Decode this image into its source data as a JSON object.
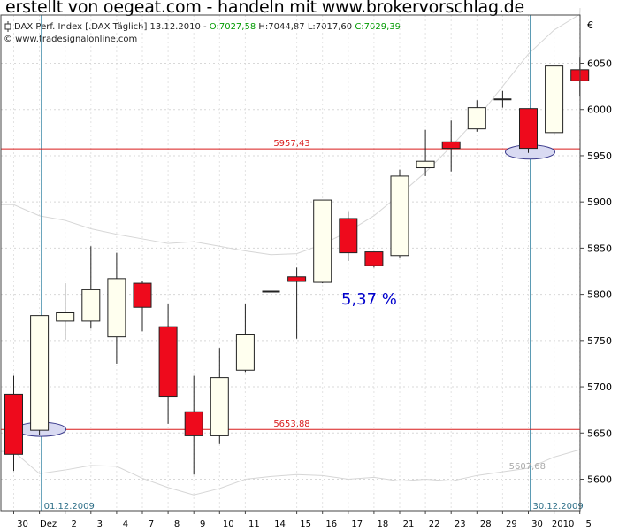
{
  "banner": "erstellt von oegeat.com - handeln mit www.brokervorschlag.de",
  "header": {
    "instrument": "DAX Perf. Index [.DAX Täglich] 13.12.2010 - ",
    "open": "O:7027,58",
    "high": "H:7044,87",
    "low": "L:7017,60",
    "close": "C:7029,39",
    "copyright": "© www.tradesignalonline.com"
  },
  "chart_data": {
    "type": "candlestick",
    "currency_label": "€",
    "ylim": [
      5583,
      6110
    ],
    "y_ticks": [
      5600,
      5650,
      5700,
      5750,
      5800,
      5850,
      5900,
      5950,
      6000,
      6050
    ],
    "y_tick_labels": [
      "5600",
      "5650",
      "5700",
      "5750",
      "5800",
      "5850",
      "5900",
      "5950",
      "6000",
      "6050"
    ],
    "x_labels": [
      "30",
      "Dez",
      "2",
      "3",
      "4",
      "7",
      "8",
      "9",
      "10",
      "11",
      "14",
      "15",
      "16",
      "17",
      "18",
      "21",
      "22",
      "23",
      "28",
      "29",
      "30",
      "2010",
      "5"
    ],
    "candles": [
      {
        "o": 5692,
        "h": 5712,
        "l": 5609,
        "c": 5627
      },
      {
        "o": 5653,
        "h": 5777,
        "l": 5648,
        "c": 5777
      },
      {
        "o": 5771,
        "h": 5812,
        "l": 5751,
        "c": 5780
      },
      {
        "o": 5771,
        "h": 5852,
        "l": 5763,
        "c": 5805
      },
      {
        "o": 5754,
        "h": 5845,
        "l": 5725,
        "c": 5817
      },
      {
        "o": 5812,
        "h": 5815,
        "l": 5760,
        "c": 5786
      },
      {
        "o": 5765,
        "h": 5790,
        "l": 5660,
        "c": 5689
      },
      {
        "o": 5673,
        "h": 5712,
        "l": 5605,
        "c": 5647
      },
      {
        "o": 5647,
        "h": 5742,
        "l": 5638,
        "c": 5710
      },
      {
        "o": 5718,
        "h": 5790,
        "l": 5716,
        "c": 5757
      },
      {
        "o": 5803,
        "h": 5825,
        "l": 5778,
        "c": 5803
      },
      {
        "o": 5819,
        "h": 5829,
        "l": 5752,
        "c": 5814
      },
      {
        "o": 5813,
        "h": 5902,
        "l": 5812,
        "c": 5902
      },
      {
        "o": 5882,
        "h": 5890,
        "l": 5836,
        "c": 5845
      },
      {
        "o": 5846,
        "h": 5846,
        "l": 5829,
        "c": 5831
      },
      {
        "o": 5842,
        "h": 5935,
        "l": 5840,
        "c": 5928
      },
      {
        "o": 5937,
        "h": 5978,
        "l": 5928,
        "c": 5944
      },
      {
        "o": 5965,
        "h": 5988,
        "l": 5933,
        "c": 5958
      },
      {
        "o": 5979,
        "h": 6010,
        "l": 5976,
        "c": 6002
      },
      {
        "o": 6011,
        "h": 6020,
        "l": 6002,
        "c": 6011
      },
      {
        "o": 6001,
        "h": 6001,
        "l": 5953,
        "c": 5958
      },
      {
        "o": 5975,
        "h": 6047,
        "l": 5972,
        "c": 6047
      },
      {
        "o": 6043,
        "h": 6057,
        "l": 6014,
        "c": 6031
      }
    ],
    "bands": {
      "upper": [
        5897,
        5885,
        5880,
        5871,
        5865,
        5860,
        5855,
        5857,
        5852,
        5847,
        5843,
        5844,
        5854,
        5868,
        5885,
        5908,
        5932,
        5960,
        5990,
        6025,
        6060,
        6086,
        6103
      ],
      "lower": [
        5630,
        5606,
        5610,
        5615,
        5614,
        5601,
        5591,
        5583,
        5590,
        5600,
        5603,
        5605,
        5604,
        5600,
        5602,
        5598,
        5600,
        5598,
        5604,
        5608,
        5612,
        5624,
        5632
      ]
    },
    "hlines": [
      {
        "value": 5957.43,
        "label": "5957,43"
      },
      {
        "value": 5653.88,
        "label": "5653,88"
      }
    ],
    "band_end_label": "5607,68",
    "vlines": [
      {
        "index": 1,
        "label": "01.12.2009"
      },
      {
        "index": 20,
        "label": "30.12.2009"
      }
    ],
    "ellipses": [
      {
        "index": 1,
        "value": 5654
      },
      {
        "index": 20,
        "value": 5954
      }
    ],
    "annotation": "5,37 %",
    "colors": {
      "bull_fill": "#ffffef",
      "bear_fill": "#ee0a1c",
      "hline": "#d91b1b",
      "vline": "#5b9bb4",
      "band": "#d6d6d6",
      "annotation": "#0000cc",
      "ellipse_fill": "#d9daf2",
      "ellipse_stroke": "#3a3a8c",
      "open": "#009a00",
      "close": "#009a00",
      "text_dark": "#222222"
    }
  }
}
